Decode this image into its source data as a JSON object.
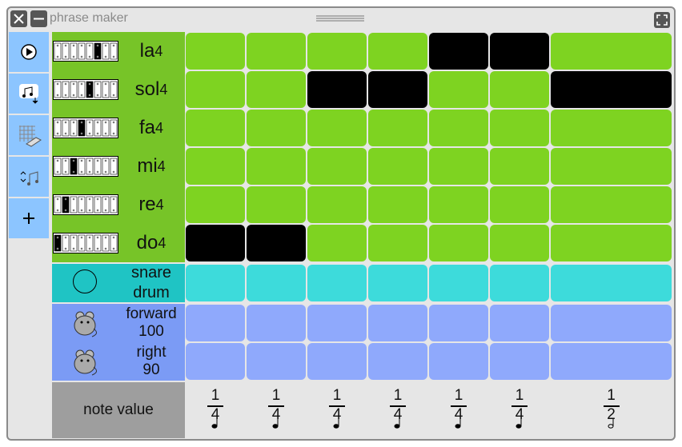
{
  "window": {
    "title": "phrase maker"
  },
  "pitch_rows": [
    {
      "name": "la",
      "octave": 4,
      "active": [
        4,
        5
      ]
    },
    {
      "name": "sol",
      "octave": 4,
      "active": [
        2,
        3,
        6
      ]
    },
    {
      "name": "fa",
      "octave": 4,
      "active": []
    },
    {
      "name": "mi",
      "octave": 4,
      "active": []
    },
    {
      "name": "re",
      "octave": 4,
      "active": []
    },
    {
      "name": "do",
      "octave": 4,
      "active": [
        0,
        1
      ]
    }
  ],
  "drum_row": {
    "label": "snare drum"
  },
  "action_rows": [
    {
      "command": "forward",
      "amount": 100
    },
    {
      "command": "right",
      "amount": 90
    }
  ],
  "note_value": {
    "label": "note value",
    "columns": [
      {
        "numerator": 1,
        "denominator": 4
      },
      {
        "numerator": 1,
        "denominator": 4
      },
      {
        "numerator": 1,
        "denominator": 4
      },
      {
        "numerator": 1,
        "denominator": 4
      },
      {
        "numerator": 1,
        "denominator": 4
      },
      {
        "numerator": 1,
        "denominator": 4
      },
      {
        "numerator": 1,
        "denominator": 2
      }
    ]
  }
}
